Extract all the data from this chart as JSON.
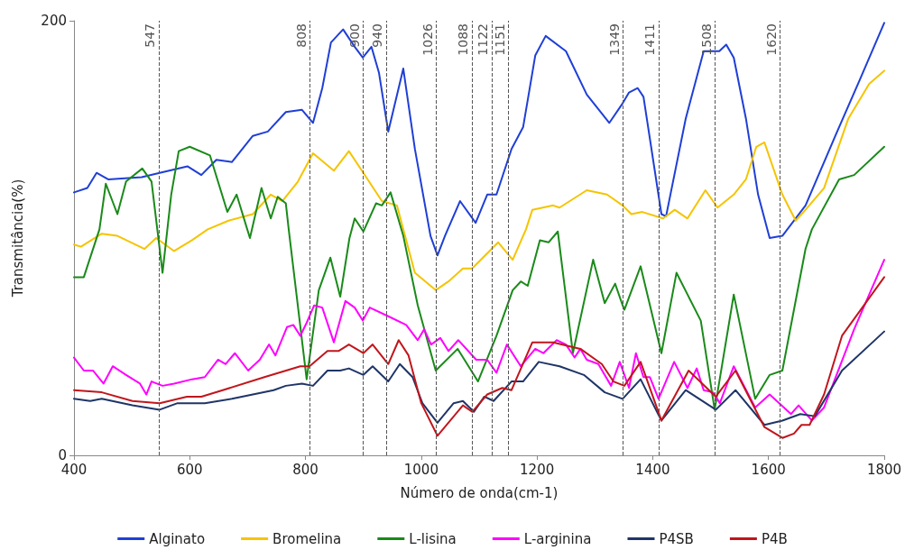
{
  "chart_data": {
    "type": "line",
    "xlabel": "Número de onda(cm-1)",
    "ylabel": "Transmitância(%)",
    "xlim": [
      400,
      1800
    ],
    "xticks": [
      400,
      600,
      800,
      1000,
      1200,
      1400,
      1600,
      1800
    ],
    "ylim": [
      0,
      200
    ],
    "yticks": [
      0,
      200
    ],
    "grid": false,
    "legend": "bottom",
    "marker": "none",
    "line_style": "solid",
    "series": [
      {
        "name": "Alginato",
        "color": "#1f3fd6",
        "x": [
          400,
          423,
          439,
          459,
          517,
          548,
          596,
          620,
          646,
          673,
          709,
          735,
          766,
          794,
          813,
          829,
          844,
          865,
          885,
          899,
          914,
          927,
          943,
          969,
          989,
          1016,
          1028,
          1041,
          1067,
          1094,
          1114,
          1130,
          1156,
          1176,
          1197,
          1215,
          1250,
          1286,
          1325,
          1348,
          1359,
          1374,
          1384,
          1415,
          1423,
          1457,
          1488,
          1515,
          1527,
          1540,
          1561,
          1582,
          1602,
          1624,
          1664,
          1717,
          1758,
          1800
        ],
        "values": [
          121,
          123,
          130,
          127,
          128,
          130,
          133,
          129,
          136,
          135,
          147,
          149,
          158,
          159,
          153,
          169,
          190,
          196,
          188,
          183,
          188,
          176,
          149,
          178,
          141,
          101,
          92,
          101,
          117,
          107,
          120,
          120,
          141,
          151,
          184,
          193,
          186,
          166,
          153,
          162,
          167,
          169,
          165,
          111,
          110,
          155,
          186,
          186,
          189,
          183,
          155,
          120,
          100,
          101,
          115,
          148,
          173,
          199
        ]
      },
      {
        "name": "Bromelina",
        "color": "#f5c400",
        "x": [
          400,
          412,
          448,
          475,
          522,
          542,
          573,
          604,
          631,
          667,
          709,
          740,
          760,
          787,
          813,
          849,
          875,
          900,
          932,
          958,
          989,
          1025,
          1047,
          1072,
          1088,
          1133,
          1158,
          1181,
          1192,
          1228,
          1239,
          1286,
          1321,
          1348,
          1363,
          1382,
          1418,
          1438,
          1460,
          1491,
          1512,
          1540,
          1561,
          1579,
          1593,
          1624,
          1647,
          1664,
          1696,
          1738,
          1774,
          1800
        ],
        "values": [
          97,
          96,
          102,
          101,
          95,
          100,
          94,
          99,
          104,
          108,
          111,
          120,
          117,
          126,
          139,
          131,
          140,
          130,
          117,
          115,
          84,
          76,
          80,
          86,
          86,
          98,
          90,
          104,
          113,
          115,
          114,
          122,
          120,
          115,
          111,
          112,
          109,
          113,
          109,
          122,
          114,
          120,
          127,
          142,
          144,
          120,
          108,
          113,
          123,
          155,
          171,
          177
        ]
      },
      {
        "name": "L-lisina",
        "color": "#1a8a1a",
        "x": [
          400,
          417,
          444,
          455,
          475,
          490,
          518,
          534,
          553,
          568,
          581,
          600,
          635,
          665,
          681,
          704,
          724,
          740,
          752,
          766,
          771,
          802,
          823,
          843,
          860,
          876,
          885,
          900,
          922,
          932,
          947,
          969,
          994,
          1025,
          1063,
          1098,
          1130,
          1158,
          1172,
          1184,
          1205,
          1220,
          1236,
          1262,
          1297,
          1317,
          1335,
          1348,
          1351,
          1379,
          1415,
          1441,
          1483,
          1507,
          1540,
          1577,
          1602,
          1624,
          1664,
          1675,
          1722,
          1748,
          1800
        ],
        "values": [
          82,
          82,
          104,
          125,
          111,
          126,
          132,
          126,
          84,
          120,
          140,
          142,
          138,
          112,
          120,
          100,
          123,
          109,
          119,
          116,
          104,
          35,
          76,
          91,
          73,
          100,
          109,
          103,
          116,
          115,
          121,
          101,
          69,
          39,
          49,
          34,
          55,
          76,
          80,
          78,
          99,
          98,
          103,
          47,
          90,
          70,
          79,
          69,
          67,
          87,
          47,
          84,
          62,
          21,
          74,
          26,
          37,
          39,
          95,
          104,
          127,
          129,
          142
        ]
      },
      {
        "name": "L-arginina",
        "color": "#ff00ff",
        "x": [
          400,
          417,
          433,
          451,
          467,
          490,
          514,
          525,
          534,
          553,
          573,
          604,
          626,
          649,
          662,
          678,
          701,
          721,
          737,
          748,
          768,
          779,
          791,
          802,
          815,
          829,
          849,
          869,
          885,
          899,
          911,
          943,
          974,
          994,
          1005,
          1017,
          1033,
          1047,
          1064,
          1095,
          1114,
          1130,
          1148,
          1172,
          1197,
          1211,
          1234,
          1250,
          1265,
          1275,
          1286,
          1306,
          1328,
          1343,
          1359,
          1371,
          1384,
          1395,
          1410,
          1437,
          1460,
          1476,
          1488,
          1504,
          1516,
          1540,
          1577,
          1602,
          1639,
          1652,
          1675,
          1696,
          1748,
          1800
        ],
        "values": [
          45,
          39,
          39,
          33,
          41,
          37,
          33,
          28,
          34,
          32,
          33,
          35,
          36,
          44,
          42,
          47,
          39,
          44,
          51,
          46,
          59,
          60,
          55,
          61,
          69,
          68,
          52,
          71,
          68,
          62,
          68,
          64,
          60,
          53,
          58,
          51,
          54,
          48,
          53,
          44,
          44,
          38,
          51,
          41,
          49,
          47,
          53,
          51,
          45,
          49,
          44,
          42,
          32,
          43,
          31,
          47,
          36,
          36,
          26,
          43,
          31,
          40,
          30,
          29,
          24,
          41,
          22,
          28,
          19,
          23,
          16,
          22,
          58,
          90
        ]
      },
      {
        "name": "P4SB",
        "color": "#1f3568",
        "x": [
          400,
          428,
          448,
          501,
          548,
          579,
          626,
          673,
          709,
          745,
          766,
          794,
          813,
          838,
          860,
          875,
          900,
          916,
          943,
          963,
          985,
          1002,
          1028,
          1056,
          1072,
          1091,
          1109,
          1125,
          1156,
          1176,
          1203,
          1239,
          1281,
          1317,
          1348,
          1379,
          1415,
          1457,
          1509,
          1543,
          1593,
          1624,
          1655,
          1680,
          1727,
          1800
        ],
        "values": [
          26,
          25,
          26,
          23,
          21,
          24,
          24,
          26,
          28,
          30,
          32,
          33,
          32,
          39,
          39,
          40,
          37,
          41,
          34,
          42,
          36,
          24,
          15,
          24,
          25,
          20,
          27,
          25,
          34,
          34,
          43,
          41,
          37,
          29,
          26,
          35,
          16,
          30,
          21,
          30,
          14,
          16,
          19,
          18,
          39,
          57
        ]
      },
      {
        "name": "P4B",
        "color": "#c0161c",
        "x": [
          400,
          448,
          501,
          548,
          595,
          620,
          657,
          729,
          791,
          807,
          838,
          857,
          875,
          900,
          916,
          943,
          961,
          978,
          1000,
          1028,
          1072,
          1088,
          1114,
          1140,
          1156,
          1192,
          1228,
          1275,
          1312,
          1332,
          1351,
          1379,
          1415,
          1462,
          1509,
          1543,
          1593,
          1624,
          1644,
          1657,
          1671,
          1696,
          1727,
          1800
        ],
        "values": [
          30,
          29,
          25,
          24,
          27,
          27,
          30,
          36,
          41,
          41,
          48,
          48,
          51,
          47,
          51,
          42,
          53,
          46,
          24,
          9,
          23,
          20,
          28,
          31,
          30,
          52,
          52,
          49,
          42,
          34,
          32,
          43,
          16,
          39,
          27,
          39,
          13,
          8,
          10,
          14,
          14,
          28,
          55,
          82
        ]
      }
    ],
    "ref_lines": [
      {
        "axis": "x",
        "value": 547,
        "label": "547",
        "color": "#555555",
        "line_style": "dashed"
      },
      {
        "axis": "x",
        "value": 808,
        "label": "808",
        "color": "#555555",
        "line_style": "dashed"
      },
      {
        "axis": "x",
        "value": 900,
        "label": "900",
        "color": "#555555",
        "line_style": "dashed"
      },
      {
        "axis": "x",
        "value": 940,
        "label": "940",
        "color": "#555555",
        "line_style": "dashed"
      },
      {
        "axis": "x",
        "value": 1026,
        "label": "1026",
        "color": "#555555",
        "line_style": "dashed"
      },
      {
        "axis": "x",
        "value": 1088,
        "label": "1088",
        "color": "#555555",
        "line_style": "dashed"
      },
      {
        "axis": "x",
        "value": 1122,
        "label": "1122",
        "color": "#555555",
        "line_style": "dashed"
      },
      {
        "axis": "x",
        "value": 1151,
        "label": "1151",
        "color": "#555555",
        "line_style": "dashed"
      },
      {
        "axis": "x",
        "value": 1349,
        "label": "1349",
        "color": "#555555",
        "line_style": "dashed"
      },
      {
        "axis": "x",
        "value": 1411,
        "label": "1411",
        "color": "#555555",
        "line_style": "dashed"
      },
      {
        "axis": "x",
        "value": 1508,
        "label": "1508",
        "color": "#555555",
        "line_style": "dashed"
      },
      {
        "axis": "x",
        "value": 1620,
        "label": "1620",
        "color": "#555555",
        "line_style": "dashed"
      }
    ]
  }
}
